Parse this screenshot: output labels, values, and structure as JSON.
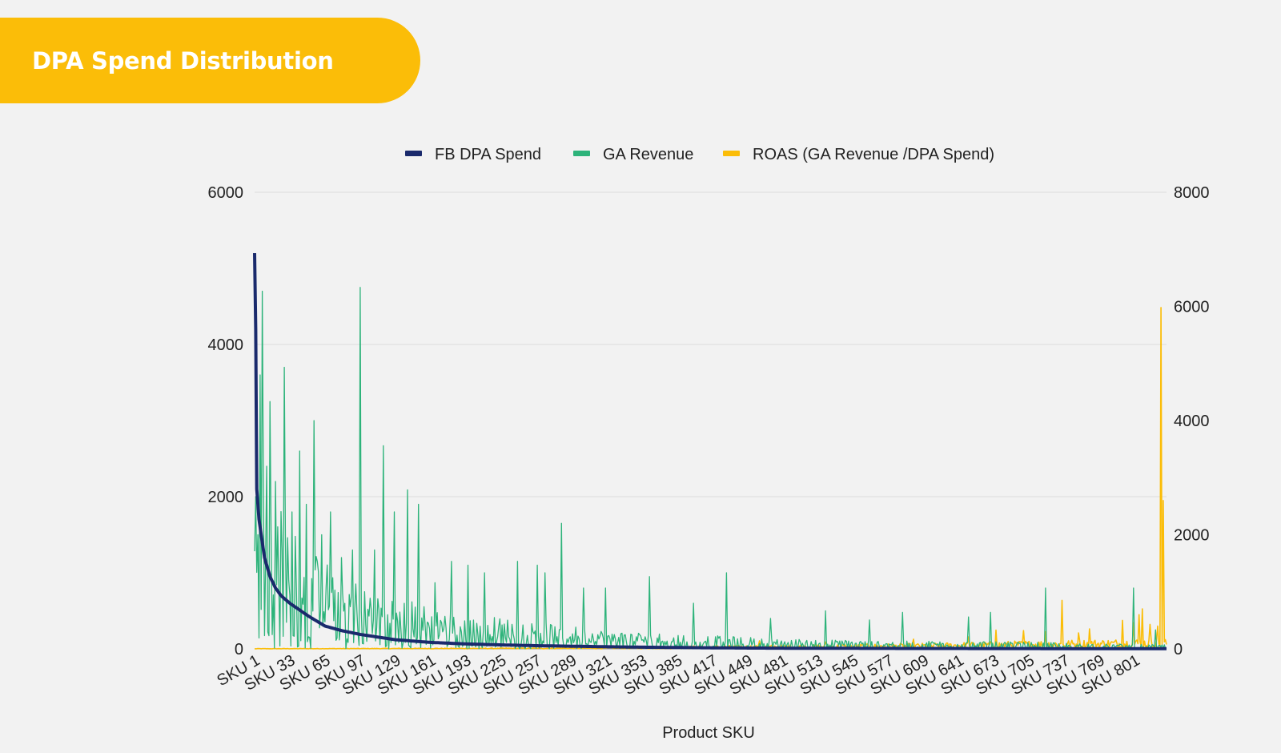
{
  "header": {
    "title": "DPA Spend Distribution"
  },
  "colors": {
    "spend": "#1a2a6c",
    "revenue": "#2db37a",
    "roas": "#fbbd08",
    "grid": "#dcdcdc",
    "background": "#f2f2f2"
  },
  "chart_data": {
    "type": "line",
    "title": "DPA Spend Distribution",
    "xlabel": "Product SKU",
    "ylabel_left": "",
    "ylabel_right": "",
    "legend": [
      "FB DPA Spend",
      "GA Revenue",
      "ROAS (GA Revenue /DPA Spend)"
    ],
    "legend_position": "top",
    "grid": true,
    "y_left": {
      "range": [
        0,
        6000
      ],
      "ticks": [
        0,
        2000,
        4000,
        6000
      ]
    },
    "y_right": {
      "range": [
        0,
        8000
      ],
      "ticks": [
        0,
        2000,
        4000,
        6000,
        8000
      ]
    },
    "x_tick_labels": [
      "SKU 1",
      "SKU 33",
      "SKU 65",
      "SKU 97",
      "SKU 129",
      "SKU 161",
      "SKU 193",
      "SKU 225",
      "SKU 257",
      "SKU 289",
      "SKU 321",
      "SKU 353",
      "SKU 385",
      "SKU 417",
      "SKU 449",
      "SKU 481",
      "SKU 513",
      "SKU 545",
      "SKU 577",
      "SKU 609",
      "SKU 641",
      "SKU 673",
      "SKU 705",
      "SKU 737",
      "SKU 769",
      "SKU 801"
    ],
    "sku_count": 830,
    "series": [
      {
        "name": "FB DPA Spend",
        "axis": "left",
        "description": "Descending spend curve",
        "points": [
          [
            1,
            5200
          ],
          [
            2,
            4200
          ],
          [
            3,
            2100
          ],
          [
            5,
            1700
          ],
          [
            10,
            1200
          ],
          [
            15,
            950
          ],
          [
            20,
            800
          ],
          [
            25,
            700
          ],
          [
            33,
            600
          ],
          [
            40,
            530
          ],
          [
            50,
            430
          ],
          [
            65,
            300
          ],
          [
            80,
            240
          ],
          [
            97,
            190
          ],
          [
            129,
            120
          ],
          [
            161,
            85
          ],
          [
            193,
            65
          ],
          [
            225,
            52
          ],
          [
            257,
            42
          ],
          [
            289,
            35
          ],
          [
            321,
            28
          ],
          [
            353,
            22
          ],
          [
            385,
            18
          ],
          [
            417,
            14
          ],
          [
            449,
            11
          ],
          [
            481,
            9
          ],
          [
            513,
            8
          ],
          [
            545,
            7
          ],
          [
            577,
            6
          ],
          [
            609,
            5
          ],
          [
            641,
            5
          ],
          [
            673,
            4
          ],
          [
            705,
            4
          ],
          [
            737,
            3
          ],
          [
            769,
            3
          ],
          [
            801,
            2
          ],
          [
            830,
            2
          ]
        ]
      },
      {
        "name": "GA Revenue",
        "axis": "left",
        "description": "Noisy revenue per SKU; notable peaks listed",
        "envelope": [
          [
            1,
            2300
          ],
          [
            20,
            1800
          ],
          [
            50,
            1200
          ],
          [
            97,
            800
          ],
          [
            129,
            650
          ],
          [
            161,
            500
          ],
          [
            193,
            420
          ],
          [
            257,
            330
          ],
          [
            321,
            220
          ],
          [
            385,
            180
          ],
          [
            449,
            140
          ],
          [
            513,
            110
          ],
          [
            577,
            100
          ],
          [
            641,
            90
          ],
          [
            705,
            80
          ],
          [
            769,
            60
          ],
          [
            830,
            50
          ]
        ],
        "peaks": [
          [
            2,
            2000
          ],
          [
            4,
            1500
          ],
          [
            6,
            3600
          ],
          [
            8,
            4700
          ],
          [
            12,
            2400
          ],
          [
            15,
            3250
          ],
          [
            20,
            2200
          ],
          [
            28,
            3700
          ],
          [
            35,
            1800
          ],
          [
            42,
            2600
          ],
          [
            48,
            1900
          ],
          [
            55,
            3000
          ],
          [
            62,
            1500
          ],
          [
            70,
            1800
          ],
          [
            80,
            1200
          ],
          [
            90,
            1300
          ],
          [
            97,
            4750
          ],
          [
            110,
            1300
          ],
          [
            118,
            2670
          ],
          [
            128,
            1800
          ],
          [
            140,
            2090
          ],
          [
            150,
            1900
          ],
          [
            165,
            870
          ],
          [
            180,
            1150
          ],
          [
            195,
            1100
          ],
          [
            210,
            1000
          ],
          [
            240,
            1150
          ],
          [
            258,
            1100
          ],
          [
            265,
            1000
          ],
          [
            280,
            1650
          ],
          [
            300,
            800
          ],
          [
            320,
            800
          ],
          [
            360,
            950
          ],
          [
            400,
            600
          ],
          [
            430,
            1000
          ],
          [
            470,
            400
          ],
          [
            520,
            500
          ],
          [
            560,
            380
          ],
          [
            590,
            480
          ],
          [
            650,
            420
          ],
          [
            670,
            480
          ],
          [
            720,
            800
          ],
          [
            800,
            800
          ],
          [
            820,
            250
          ]
        ]
      },
      {
        "name": "ROAS (GA Revenue /DPA Spend)",
        "axis": "right",
        "description": "Near zero for top SKUs, rising spikes for long tail",
        "baseline": [
          [
            1,
            5
          ],
          [
            300,
            20
          ],
          [
            450,
            40
          ],
          [
            600,
            60
          ],
          [
            700,
            90
          ],
          [
            830,
            120
          ]
        ],
        "peaks": [
          [
            460,
            140
          ],
          [
            520,
            120
          ],
          [
            600,
            170
          ],
          [
            650,
            210
          ],
          [
            675,
            330
          ],
          [
            700,
            320
          ],
          [
            720,
            300
          ],
          [
            735,
            850
          ],
          [
            750,
            280
          ],
          [
            760,
            350
          ],
          [
            790,
            500
          ],
          [
            800,
            460
          ],
          [
            805,
            600
          ],
          [
            808,
            700
          ],
          [
            815,
            430
          ],
          [
            822,
            400
          ],
          [
            825,
            5980
          ],
          [
            827,
            2600
          ],
          [
            835,
            300
          ],
          [
            838,
            200
          ]
        ]
      }
    ]
  }
}
